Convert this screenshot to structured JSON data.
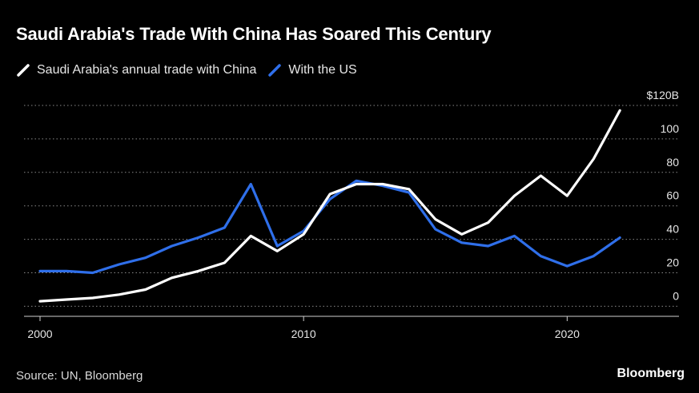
{
  "chart_data": {
    "type": "line",
    "title": "Saudi Arabia's Trade With China Has Soared This Century",
    "x": [
      2000,
      2001,
      2002,
      2003,
      2004,
      2005,
      2006,
      2007,
      2008,
      2009,
      2010,
      2011,
      2012,
      2013,
      2014,
      2015,
      2016,
      2017,
      2018,
      2019,
      2020,
      2021,
      2022
    ],
    "series": [
      {
        "name": "Saudi Arabia's annual trade with China",
        "color": "#ffffff",
        "values": [
          3,
          4,
          5,
          7,
          10,
          17,
          21,
          26,
          42,
          33,
          43,
          67,
          73,
          73,
          70,
          52,
          43,
          50,
          66,
          78,
          66,
          88,
          117
        ]
      },
      {
        "name": "With the US",
        "color": "#2f6fea",
        "values": [
          21,
          21,
          20,
          25,
          29,
          36,
          41,
          47,
          73,
          36,
          45,
          64,
          75,
          72,
          68,
          46,
          38,
          36,
          42,
          30,
          24,
          30,
          41
        ]
      }
    ],
    "y_ticks": [
      {
        "value": 0,
        "label": "0"
      },
      {
        "value": 20,
        "label": "20"
      },
      {
        "value": 40,
        "label": "40"
      },
      {
        "value": 60,
        "label": "60"
      },
      {
        "value": 80,
        "label": "80"
      },
      {
        "value": 100,
        "label": "100"
      },
      {
        "value": 120,
        "label": "$120B"
      }
    ],
    "x_ticks": [
      {
        "value": 2000,
        "label": "2000"
      },
      {
        "value": 2010,
        "label": "2010"
      },
      {
        "value": 2020,
        "label": "2020"
      }
    ],
    "xlim": [
      2000,
      2024
    ],
    "ylim": [
      -6,
      120
    ],
    "grid": "horizontal dotted",
    "legend_position": "top-left"
  },
  "footer": {
    "source": "Source: UN, Bloomberg",
    "brand": "Bloomberg"
  }
}
